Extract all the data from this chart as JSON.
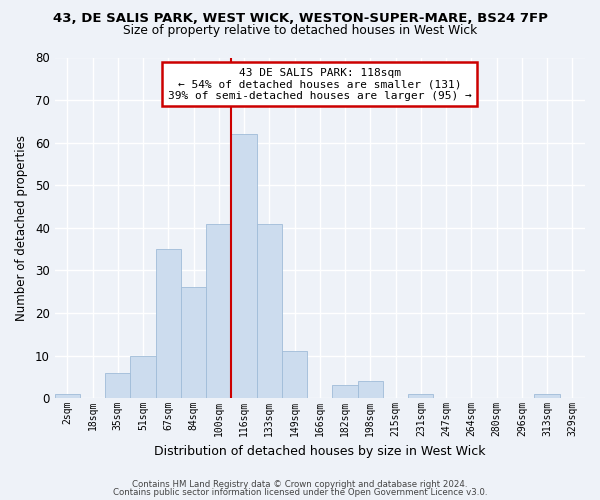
{
  "title1": "43, DE SALIS PARK, WEST WICK, WESTON-SUPER-MARE, BS24 7FP",
  "title2": "Size of property relative to detached houses in West Wick",
  "xlabel": "Distribution of detached houses by size in West Wick",
  "ylabel": "Number of detached properties",
  "bar_labels": [
    "2sqm",
    "18sqm",
    "35sqm",
    "51sqm",
    "67sqm",
    "84sqm",
    "100sqm",
    "116sqm",
    "133sqm",
    "149sqm",
    "166sqm",
    "182sqm",
    "198sqm",
    "215sqm",
    "231sqm",
    "247sqm",
    "264sqm",
    "280sqm",
    "296sqm",
    "313sqm",
    "329sqm"
  ],
  "bar_values": [
    1,
    0,
    6,
    10,
    35,
    26,
    41,
    62,
    41,
    11,
    0,
    3,
    4,
    0,
    1,
    0,
    0,
    0,
    0,
    1,
    0
  ],
  "bar_color": "#ccdcee",
  "bar_edge_color": "#a0bcd8",
  "vline_bar_index": 7,
  "vline_color": "#cc0000",
  "ylim": [
    0,
    80
  ],
  "yticks": [
    0,
    10,
    20,
    30,
    40,
    50,
    60,
    70,
    80
  ],
  "annotation_line1": "43 DE SALIS PARK: 118sqm",
  "annotation_line2": "← 54% of detached houses are smaller (131)",
  "annotation_line3": "39% of semi-detached houses are larger (95) →",
  "annotation_box_color": "#ffffff",
  "annotation_box_edge": "#cc0000",
  "bg_color": "#eef2f8",
  "grid_color": "#ffffff",
  "footer1": "Contains HM Land Registry data © Crown copyright and database right 2024.",
  "footer2": "Contains public sector information licensed under the Open Government Licence v3.0."
}
